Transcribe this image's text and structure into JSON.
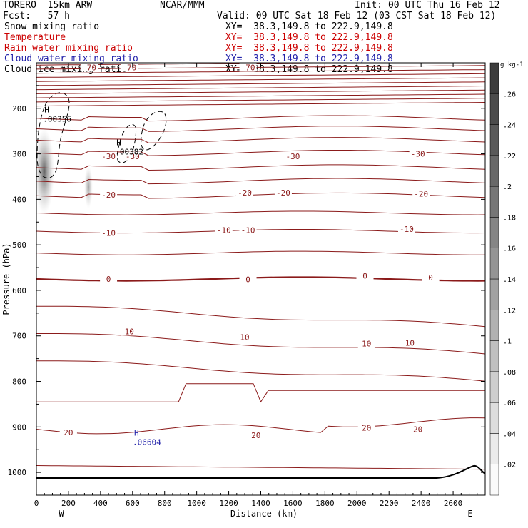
{
  "header": {
    "model": "TORERO  15km ARW",
    "center": "NCAR/MMM",
    "init": "Init: 00 UTC Thu 16 Feb 12",
    "fcst": "Fcst:   57 h",
    "valid": "Valid: 09 UTC Sat 18 Feb 12 (03 CST Sat 18 Feb 12)"
  },
  "legend": [
    {
      "name": "Snow mixing ratio",
      "xy": "XY=  38.3,149.8 to 222.9,149.8",
      "color": "#000000"
    },
    {
      "name": "Temperature",
      "xy": "XY=  38.3,149.8 to 222.9,149.8",
      "color": "#cc0000"
    },
    {
      "name": "Rain water mixing ratio",
      "xy": "XY=  38.3,149.8 to 222.9,149.8",
      "color": "#cc0000"
    },
    {
      "name": "Cloud water mixing ratio",
      "xy": "XY=  38.3,149.8 to 222.9,149.8",
      "color": "#2222aa"
    },
    {
      "name": "Cloud ice mixing ratio",
      "xy": "XY=  38.3,149.8 to 222.9,149.8",
      "color": "#000000"
    }
  ],
  "chart_data": {
    "type": "cross-section",
    "xlabel": "Distance (km)",
    "ylabel": "Pressure (hPa)",
    "xlim": [
      0,
      2800
    ],
    "ylim": [
      1050,
      100
    ],
    "x_ticks": [
      0,
      200,
      400,
      600,
      800,
      1000,
      1200,
      1400,
      1600,
      1800,
      2000,
      2200,
      2400,
      2600
    ],
    "y_ticks": [
      200,
      300,
      400,
      500,
      600,
      700,
      800,
      900,
      1000
    ],
    "x_end_labels": [
      "W",
      "E"
    ],
    "colorbar": {
      "unit": "g kg-1",
      "ticks": [
        ".02",
        ".04",
        ".06",
        ".08",
        ".1",
        ".12",
        ".14",
        ".16",
        ".18",
        ".2",
        ".22",
        ".24",
        ".26"
      ]
    },
    "temperature_labels": [
      {
        "text": "-70",
        "x": 330,
        "p": 110
      },
      {
        "text": "-70",
        "x": 580,
        "p": 110
      },
      {
        "text": "-70",
        "x": 1320,
        "p": 110
      },
      {
        "text": "-30",
        "x": 450,
        "p": 305
      },
      {
        "text": "-30",
        "x": 600,
        "p": 305
      },
      {
        "text": "-30",
        "x": 1600,
        "p": 305
      },
      {
        "text": "-30",
        "x": 2380,
        "p": 300
      },
      {
        "text": "-20",
        "x": 450,
        "p": 390
      },
      {
        "text": "-20",
        "x": 1300,
        "p": 385
      },
      {
        "text": "-20",
        "x": 1540,
        "p": 385
      },
      {
        "text": "-20",
        "x": 2400,
        "p": 388
      },
      {
        "text": "-10",
        "x": 450,
        "p": 474
      },
      {
        "text": "-10",
        "x": 1170,
        "p": 468
      },
      {
        "text": "-10",
        "x": 1320,
        "p": 468
      },
      {
        "text": "-10",
        "x": 2310,
        "p": 465
      },
      {
        "text": "0",
        "x": 450,
        "p": 575
      },
      {
        "text": "0",
        "x": 1320,
        "p": 576
      },
      {
        "text": "0",
        "x": 2050,
        "p": 568
      },
      {
        "text": "0",
        "x": 2460,
        "p": 572
      },
      {
        "text": "10",
        "x": 580,
        "p": 690
      },
      {
        "text": "10",
        "x": 1300,
        "p": 703
      },
      {
        "text": "10",
        "x": 2060,
        "p": 717
      },
      {
        "text": "10",
        "x": 2330,
        "p": 715
      },
      {
        "text": "20",
        "x": 200,
        "p": 912
      },
      {
        "text": "20",
        "x": 1370,
        "p": 918
      },
      {
        "text": "20",
        "x": 2060,
        "p": 902
      },
      {
        "text": "20",
        "x": 2380,
        "p": 905
      }
    ],
    "maxima_labels": [
      {
        "text": ".00356",
        "mark": "H",
        "x": 130,
        "p": 225,
        "color": "#000000"
      },
      {
        "text": ".00382",
        "mark": "H",
        "x": 580,
        "p": 297,
        "color": "#000000"
      },
      {
        "text": ".06604",
        "mark": "H",
        "x": 690,
        "p": 935,
        "color": "#2222aa"
      }
    ]
  }
}
